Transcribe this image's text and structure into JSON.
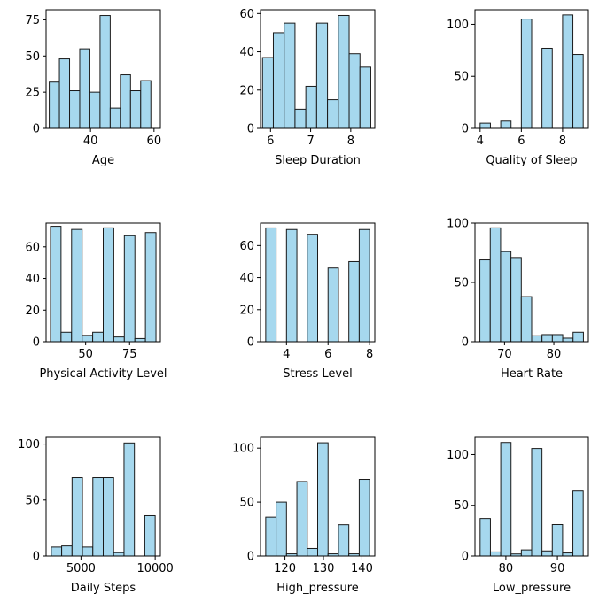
{
  "figure": {
    "background": "#ffffff"
  },
  "style": {
    "bar_fill": "#a6d8ee",
    "bar_edge": "#1a1a1a",
    "axis_color": "#000000"
  },
  "chart_data": [
    {
      "type": "bar",
      "xlabel": "Age",
      "xlim": [
        26,
        62
      ],
      "ylim": [
        0,
        82
      ],
      "xticks": [
        40,
        60
      ],
      "xtick_labels": [
        "40",
        "60"
      ],
      "yticks": [
        0,
        25,
        50,
        75
      ],
      "ytick_labels": [
        "0",
        "25",
        "50",
        "75"
      ],
      "bins": [
        [
          27,
          30.2
        ],
        [
          30.2,
          33.4
        ],
        [
          33.4,
          36.6
        ],
        [
          36.6,
          39.8
        ],
        [
          39.8,
          43.0
        ],
        [
          43.0,
          46.2
        ],
        [
          46.2,
          49.4
        ],
        [
          49.4,
          52.6
        ],
        [
          52.6,
          55.8
        ],
        [
          55.8,
          59
        ]
      ],
      "values": [
        32,
        48,
        26,
        55,
        25,
        78,
        14,
        37,
        26,
        33
      ]
    },
    {
      "type": "bar",
      "xlabel": "Sleep Duration",
      "xlim": [
        5.75,
        8.6
      ],
      "ylim": [
        0,
        62
      ],
      "xticks": [
        6,
        7,
        8
      ],
      "xtick_labels": [
        "6",
        "7",
        "8"
      ],
      "yticks": [
        0,
        20,
        40,
        60
      ],
      "ytick_labels": [
        "0",
        "20",
        "40",
        "60"
      ],
      "bins": [
        [
          5.8,
          6.07
        ],
        [
          6.07,
          6.34
        ],
        [
          6.34,
          6.61
        ],
        [
          6.61,
          6.88
        ],
        [
          6.88,
          7.15
        ],
        [
          7.15,
          7.42
        ],
        [
          7.42,
          7.69
        ],
        [
          7.69,
          7.96
        ],
        [
          7.96,
          8.23
        ],
        [
          8.23,
          8.5
        ]
      ],
      "values": [
        37,
        50,
        55,
        10,
        22,
        55,
        15,
        59,
        39,
        32
      ]
    },
    {
      "type": "bar",
      "xlabel": "Quality of Sleep",
      "xlim": [
        3.75,
        9.25
      ],
      "ylim": [
        0,
        114
      ],
      "xticks": [
        4,
        6,
        8
      ],
      "xtick_labels": [
        "4",
        "6",
        "8"
      ],
      "yticks": [
        0,
        50,
        100
      ],
      "ytick_labels": [
        "0",
        "50",
        "100"
      ],
      "bins": [
        [
          4.0,
          4.5
        ],
        [
          4.5,
          5.0
        ],
        [
          5.0,
          5.5
        ],
        [
          5.5,
          6.0
        ],
        [
          6.0,
          6.5
        ],
        [
          6.5,
          7.0
        ],
        [
          7.0,
          7.5
        ],
        [
          7.5,
          8.0
        ],
        [
          8.0,
          8.5
        ],
        [
          8.5,
          9.0
        ]
      ],
      "values": [
        5,
        0,
        7,
        0,
        105,
        0,
        77,
        0,
        109,
        71
      ]
    },
    {
      "type": "bar",
      "xlabel": "Physical Activity Level",
      "xlim": [
        27.5,
        92.5
      ],
      "ylim": [
        0,
        75
      ],
      "xticks": [
        50,
        75
      ],
      "xtick_labels": [
        "50",
        "75"
      ],
      "yticks": [
        0,
        20,
        40,
        60
      ],
      "ytick_labels": [
        "0",
        "20",
        "40",
        "60"
      ],
      "bins": [
        [
          30,
          36
        ],
        [
          36,
          42
        ],
        [
          42,
          48
        ],
        [
          48,
          54
        ],
        [
          54,
          60
        ],
        [
          60,
          66
        ],
        [
          66,
          72
        ],
        [
          72,
          78
        ],
        [
          78,
          84
        ],
        [
          84,
          90
        ]
      ],
      "values": [
        73,
        6,
        71,
        4,
        6,
        72,
        3,
        67,
        2,
        69
      ]
    },
    {
      "type": "bar",
      "xlabel": "Stress Level",
      "xlim": [
        2.75,
        8.25
      ],
      "ylim": [
        0,
        74
      ],
      "xticks": [
        4,
        6,
        8
      ],
      "xtick_labels": [
        "4",
        "6",
        "8"
      ],
      "yticks": [
        0,
        20,
        40,
        60
      ],
      "ytick_labels": [
        "0",
        "20",
        "40",
        "60"
      ],
      "bins": [
        [
          3.0,
          3.5
        ],
        [
          3.5,
          4.0
        ],
        [
          4.0,
          4.5
        ],
        [
          4.5,
          5.0
        ],
        [
          5.0,
          5.5
        ],
        [
          5.5,
          6.0
        ],
        [
          6.0,
          6.5
        ],
        [
          6.5,
          7.0
        ],
        [
          7.0,
          7.5
        ],
        [
          7.5,
          8.0
        ]
      ],
      "values": [
        71,
        0,
        70,
        0,
        67,
        0,
        46,
        0,
        50,
        70
      ]
    },
    {
      "type": "bar",
      "xlabel": "Heart Rate",
      "xlim": [
        64,
        87
      ],
      "ylim": [
        0,
        100
      ],
      "xticks": [
        70,
        80
      ],
      "xtick_labels": [
        "70",
        "80"
      ],
      "yticks": [
        0,
        50,
        100
      ],
      "ytick_labels": [
        "0",
        "50",
        "100"
      ],
      "bins": [
        [
          65,
          67.1
        ],
        [
          67.1,
          69.2
        ],
        [
          69.2,
          71.3
        ],
        [
          71.3,
          73.4
        ],
        [
          73.4,
          75.5
        ],
        [
          75.5,
          77.6
        ],
        [
          77.6,
          79.7
        ],
        [
          79.7,
          81.8
        ],
        [
          81.8,
          83.9
        ],
        [
          83.9,
          86
        ]
      ],
      "values": [
        69,
        96,
        76,
        71,
        38,
        5,
        6,
        6,
        3,
        8
      ]
    },
    {
      "type": "bar",
      "xlabel": "Daily Steps",
      "xlim": [
        2650,
        10350
      ],
      "ylim": [
        0,
        106
      ],
      "xticks": [
        5000,
        10000
      ],
      "xtick_labels": [
        "5000",
        "10000"
      ],
      "yticks": [
        0,
        50,
        100
      ],
      "ytick_labels": [
        "0",
        "50",
        "100"
      ],
      "bins": [
        [
          3000,
          3700
        ],
        [
          3700,
          4400
        ],
        [
          4400,
          5100
        ],
        [
          5100,
          5800
        ],
        [
          5800,
          6500
        ],
        [
          6500,
          7200
        ],
        [
          7200,
          7900
        ],
        [
          7900,
          8600
        ],
        [
          8600,
          9300
        ],
        [
          9300,
          10000
        ]
      ],
      "values": [
        8,
        9,
        70,
        8,
        70,
        70,
        3,
        101,
        0,
        36
      ]
    },
    {
      "type": "bar",
      "xlabel": "High_pressure",
      "xlim": [
        113.65,
        143.35
      ],
      "ylim": [
        0,
        110
      ],
      "xticks": [
        120,
        130,
        140
      ],
      "xtick_labels": [
        "120",
        "130",
        "140"
      ],
      "yticks": [
        0,
        50,
        100
      ],
      "ytick_labels": [
        "0",
        "50",
        "100"
      ],
      "bins": [
        [
          115,
          117.7
        ],
        [
          117.7,
          120.4
        ],
        [
          120.4,
          123.1
        ],
        [
          123.1,
          125.8
        ],
        [
          125.8,
          128.5
        ],
        [
          128.5,
          131.2
        ],
        [
          131.2,
          133.9
        ],
        [
          133.9,
          136.6
        ],
        [
          136.6,
          139.3
        ],
        [
          139.3,
          142
        ]
      ],
      "values": [
        36,
        50,
        2,
        69,
        7,
        105,
        2,
        29,
        2,
        71
      ]
    },
    {
      "type": "bar",
      "xlabel": "Low_pressure",
      "xlim": [
        74,
        96
      ],
      "ylim": [
        0,
        117
      ],
      "xticks": [
        80,
        90
      ],
      "xtick_labels": [
        "80",
        "90"
      ],
      "yticks": [
        0,
        50,
        100
      ],
      "ytick_labels": [
        "0",
        "50",
        "100"
      ],
      "bins": [
        [
          75,
          77
        ],
        [
          77,
          79
        ],
        [
          79,
          81
        ],
        [
          81,
          83
        ],
        [
          83,
          85
        ],
        [
          85,
          87
        ],
        [
          87,
          89
        ],
        [
          89,
          91
        ],
        [
          91,
          93
        ],
        [
          93,
          95
        ]
      ],
      "values": [
        37,
        4,
        112,
        2,
        6,
        106,
        5,
        31,
        3,
        64
      ]
    }
  ]
}
